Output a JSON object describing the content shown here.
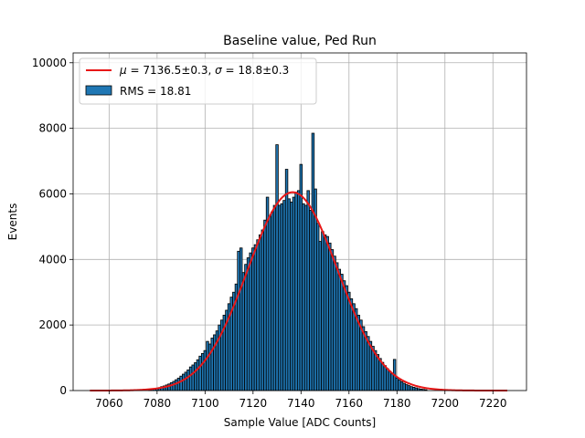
{
  "chart_data": {
    "type": "bar",
    "title": "Baseline value, Ped Run",
    "xlabel": "Sample Value [ADC Counts]",
    "ylabel": "Events",
    "xlim": [
      7045,
      7234
    ],
    "ylim": [
      0,
      10300
    ],
    "xticks": [
      7060,
      7080,
      7100,
      7120,
      7140,
      7160,
      7180,
      7200,
      7220
    ],
    "yticks": [
      0,
      2000,
      4000,
      6000,
      8000,
      10000
    ],
    "grid": true,
    "legend_position": "top-left",
    "histogram": {
      "name": "RMS = 18.81",
      "color": "#1f77b4",
      "bin_width": 1,
      "bins": [
        [
          7077,
          30
        ],
        [
          7078,
          40
        ],
        [
          7079,
          50
        ],
        [
          7080,
          70
        ],
        [
          7081,
          90
        ],
        [
          7082,
          120
        ],
        [
          7083,
          140
        ],
        [
          7084,
          170
        ],
        [
          7085,
          200
        ],
        [
          7086,
          240
        ],
        [
          7087,
          280
        ],
        [
          7088,
          330
        ],
        [
          7089,
          380
        ],
        [
          7090,
          440
        ],
        [
          7091,
          500
        ],
        [
          7092,
          560
        ],
        [
          7093,
          630
        ],
        [
          7094,
          720
        ],
        [
          7095,
          780
        ],
        [
          7096,
          850
        ],
        [
          7097,
          940
        ],
        [
          7098,
          1050
        ],
        [
          7099,
          1130
        ],
        [
          7100,
          1220
        ],
        [
          7101,
          1500
        ],
        [
          7102,
          1420
        ],
        [
          7103,
          1600
        ],
        [
          7104,
          1700
        ],
        [
          7105,
          1820
        ],
        [
          7106,
          2000
        ],
        [
          7107,
          2150
        ],
        [
          7108,
          2300
        ],
        [
          7109,
          2450
        ],
        [
          7110,
          2650
        ],
        [
          7111,
          2850
        ],
        [
          7112,
          3000
        ],
        [
          7113,
          3250
        ],
        [
          7114,
          4250
        ],
        [
          7115,
          4350
        ],
        [
          7116,
          3600
        ],
        [
          7117,
          3850
        ],
        [
          7118,
          4050
        ],
        [
          7119,
          4200
        ],
        [
          7120,
          4350
        ],
        [
          7121,
          4450
        ],
        [
          7122,
          4600
        ],
        [
          7123,
          4750
        ],
        [
          7124,
          4900
        ],
        [
          7125,
          5200
        ],
        [
          7126,
          5900
        ],
        [
          7127,
          5300
        ],
        [
          7128,
          5450
        ],
        [
          7129,
          5650
        ],
        [
          7130,
          7500
        ],
        [
          7131,
          5650
        ],
        [
          7132,
          5700
        ],
        [
          7133,
          5800
        ],
        [
          7134,
          6750
        ],
        [
          7135,
          5850
        ],
        [
          7136,
          5750
        ],
        [
          7137,
          5900
        ],
        [
          7138,
          6050
        ],
        [
          7139,
          6100
        ],
        [
          7140,
          6900
        ],
        [
          7141,
          5700
        ],
        [
          7142,
          5650
        ],
        [
          7143,
          6100
        ],
        [
          7144,
          5500
        ],
        [
          7145,
          7850
        ],
        [
          7146,
          6150
        ],
        [
          7147,
          5100
        ],
        [
          7148,
          4550
        ],
        [
          7149,
          4850
        ],
        [
          7150,
          4750
        ],
        [
          7151,
          4700
        ],
        [
          7152,
          4500
        ],
        [
          7153,
          4300
        ],
        [
          7154,
          4100
        ],
        [
          7155,
          3900
        ],
        [
          7156,
          3700
        ],
        [
          7157,
          3550
        ],
        [
          7158,
          3350
        ],
        [
          7159,
          3200
        ],
        [
          7160,
          3000
        ],
        [
          7161,
          2800
        ],
        [
          7162,
          2650
        ],
        [
          7163,
          2500
        ],
        [
          7164,
          2300
        ],
        [
          7165,
          2150
        ],
        [
          7166,
          1950
        ],
        [
          7167,
          1800
        ],
        [
          7168,
          1650
        ],
        [
          7169,
          1500
        ],
        [
          7170,
          1350
        ],
        [
          7171,
          1220
        ],
        [
          7172,
          1100
        ],
        [
          7173,
          980
        ],
        [
          7174,
          860
        ],
        [
          7175,
          760
        ],
        [
          7176,
          670
        ],
        [
          7177,
          590
        ],
        [
          7178,
          510
        ],
        [
          7179,
          950
        ],
        [
          7180,
          380
        ],
        [
          7181,
          320
        ],
        [
          7182,
          270
        ],
        [
          7183,
          220
        ],
        [
          7184,
          180
        ],
        [
          7185,
          150
        ],
        [
          7186,
          120
        ],
        [
          7187,
          100
        ],
        [
          7188,
          80
        ],
        [
          7189,
          60
        ],
        [
          7190,
          45
        ],
        [
          7191,
          35
        ],
        [
          7192,
          25
        ]
      ]
    },
    "fit": {
      "name": "$\\mu = 7136.5{\\pm}0.3$, $\\sigma = 18.8{\\pm}0.3$",
      "mu_label": "μ",
      "mu_text": " = 7136.5±0.3, ",
      "sigma_label": "σ",
      "sigma_text": " = 18.8±0.3",
      "color": "#e81717",
      "type": "gaussian",
      "mu": 7136.5,
      "sigma": 18.8,
      "amplitude": 6050,
      "x_range": [
        7052,
        7226
      ]
    },
    "rms_label": "RMS = 18.81"
  }
}
